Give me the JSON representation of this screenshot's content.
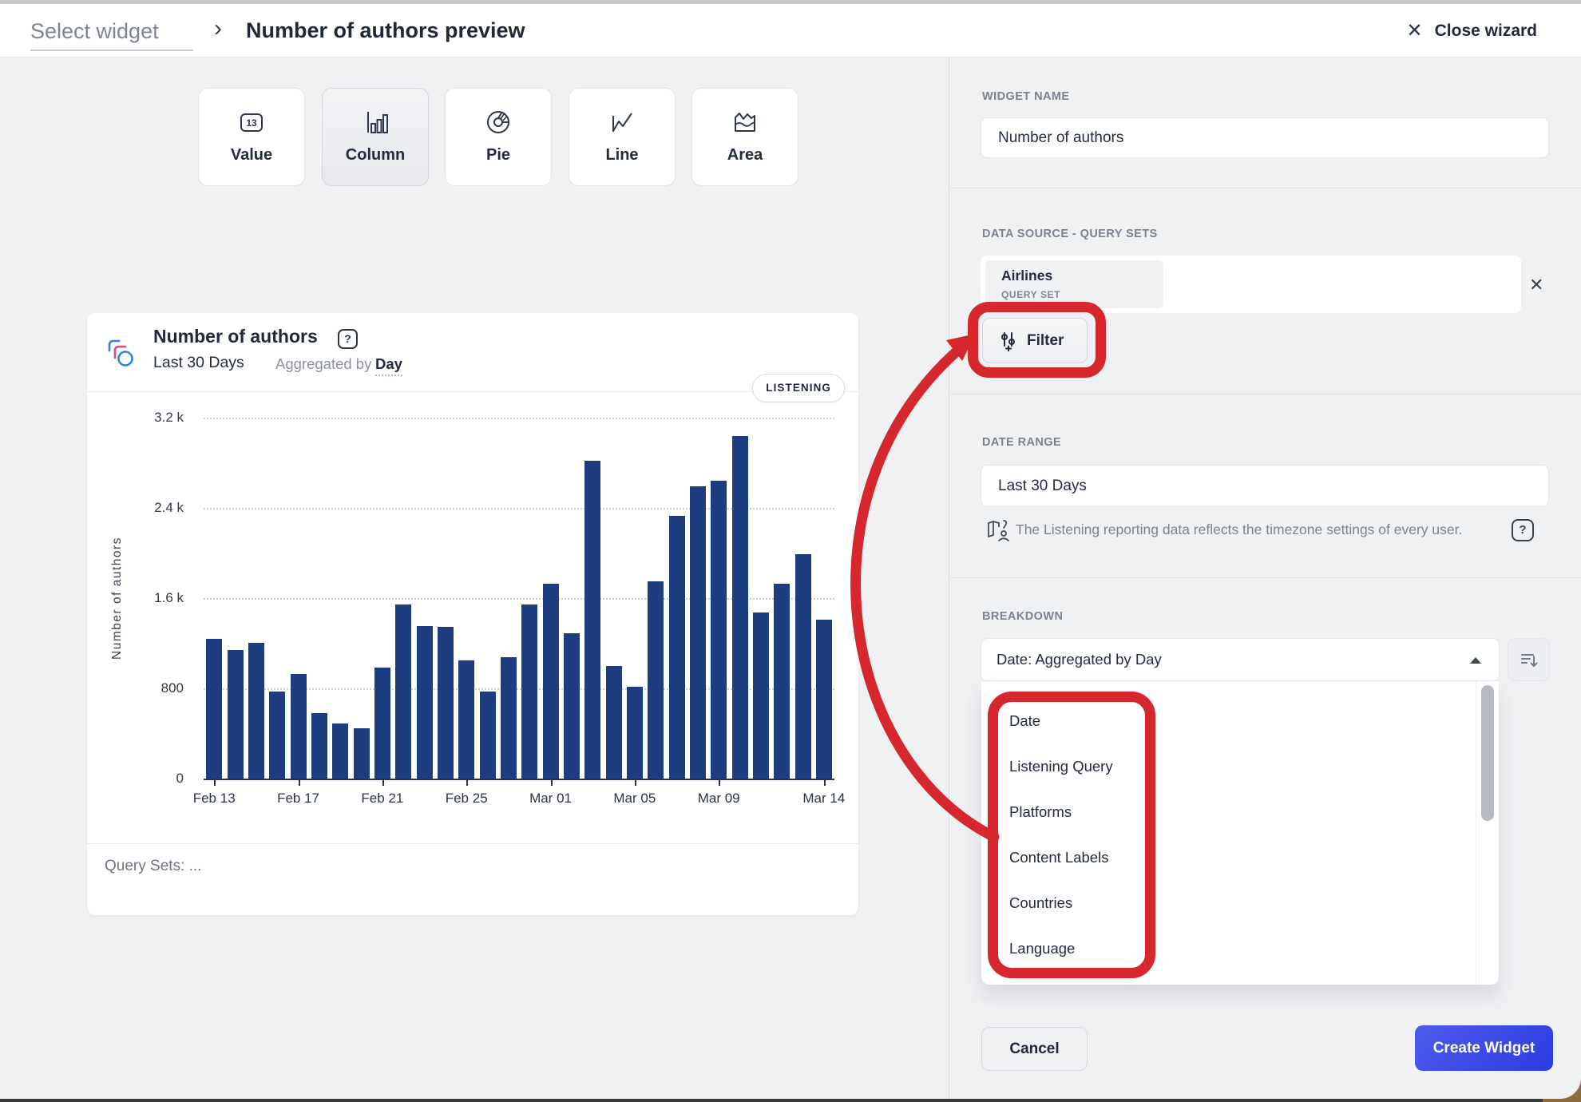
{
  "header": {
    "breadcrumb": "Select widget",
    "chevron": "›",
    "title": "Number of authors preview",
    "close_icon": "✕",
    "close_label": "Close wizard"
  },
  "widget_types": [
    {
      "label": "Value",
      "icon": "value-icon",
      "selected": false
    },
    {
      "label": "Column",
      "icon": "column-icon",
      "selected": true
    },
    {
      "label": "Pie",
      "icon": "pie-icon",
      "selected": false
    },
    {
      "label": "Line",
      "icon": "line-icon",
      "selected": false
    },
    {
      "label": "Area",
      "icon": "area-icon",
      "selected": false
    }
  ],
  "chart_card": {
    "title": "Number of authors",
    "help_icon": "?",
    "subtitle_range": "Last 30 Days",
    "aggregated_prefix": "Aggregated by",
    "aggregated_value": "Day",
    "badge": "LISTENING",
    "footer": "Query Sets: ..."
  },
  "chart_data": {
    "type": "bar",
    "title": "Number of authors",
    "ylabel": "Number of authors",
    "ylim": [
      0,
      3200
    ],
    "ytick_labels": [
      "3.2 k",
      "2.4 k",
      "1.6 k",
      "800",
      "0"
    ],
    "ytick_values": [
      3200,
      2400,
      1600,
      800,
      0
    ],
    "grid": "dotted horizontal",
    "bar_color": "#1e3d80",
    "categories": [
      "Feb 13",
      "Feb 14",
      "Feb 15",
      "Feb 16",
      "Feb 17",
      "Feb 18",
      "Feb 19",
      "Feb 20",
      "Feb 21",
      "Feb 22",
      "Feb 23",
      "Feb 24",
      "Feb 25",
      "Feb 26",
      "Feb 27",
      "Feb 28",
      "Mar 01",
      "Mar 02",
      "Mar 03",
      "Mar 04",
      "Mar 05",
      "Mar 06",
      "Mar 07",
      "Mar 08",
      "Mar 09",
      "Mar 10",
      "Mar 11",
      "Mar 12",
      "Mar 13",
      "Mar 14"
    ],
    "values": [
      1240,
      1140,
      1200,
      775,
      925,
      580,
      490,
      445,
      985,
      1540,
      1355,
      1345,
      1045,
      770,
      1075,
      1545,
      1725,
      1290,
      2820,
      1000,
      815,
      1750,
      2330,
      2590,
      2640,
      3040,
      1475,
      1730,
      1990,
      1410
    ],
    "x_tick_indices": [
      0,
      4,
      8,
      12,
      16,
      20,
      24,
      29
    ],
    "x_tick_labels": [
      "Feb 13",
      "Feb 17",
      "Feb 21",
      "Feb 25",
      "Mar 01",
      "Mar 05",
      "Mar 09",
      "Mar 14"
    ]
  },
  "panel": {
    "widget_name": {
      "label": "WIDGET NAME",
      "value": "Number of authors"
    },
    "data_source": {
      "label": "DATA SOURCE - QUERY SETS",
      "chip_title": "Airlines",
      "chip_subtitle": "QUERY SET",
      "remove_icon": "✕",
      "filter_label": "Filter"
    },
    "date_range": {
      "label": "DATE RANGE",
      "value": "Last 30 Days",
      "note": "The Listening reporting data reflects the timezone settings of every user.",
      "help_icon": "?"
    },
    "breakdown": {
      "label": "BREAKDOWN",
      "value": "Date: Aggregated by Day",
      "options": [
        "Date",
        "Listening Query",
        "Platforms",
        "Content Labels",
        "Countries",
        "Language"
      ]
    },
    "actions": {
      "cancel": "Cancel",
      "create": "Create Widget"
    }
  },
  "colors": {
    "accent_blue": "#3b4be2",
    "annotation_red": "#d7272e",
    "bar_navy": "#1e3d80",
    "panel_bg": "#f0f1f3"
  }
}
